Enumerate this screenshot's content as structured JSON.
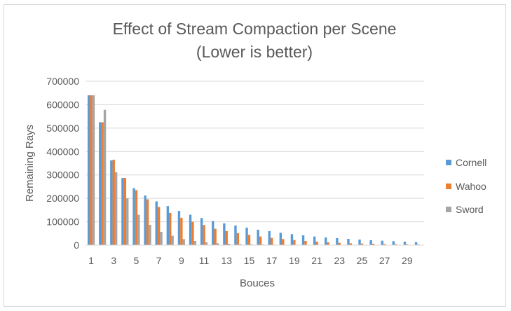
{
  "chart_data": {
    "type": "bar",
    "title": "Effect of Stream Compaction per Scene",
    "subtitle": "(Lower is better)",
    "xlabel": "Bouces",
    "ylabel": "Remaining Rays",
    "ylim": [
      0,
      700000
    ],
    "y_ticks": [
      "0",
      "100000",
      "200000",
      "300000",
      "400000",
      "500000",
      "600000",
      "700000"
    ],
    "y_tick_values": [
      0,
      100000,
      200000,
      300000,
      400000,
      500000,
      600000,
      700000
    ],
    "grid": true,
    "legend_position": "right",
    "categories": [
      "1",
      "2",
      "3",
      "4",
      "5",
      "6",
      "7",
      "8",
      "9",
      "10",
      "11",
      "12",
      "13",
      "14",
      "15",
      "16",
      "17",
      "18",
      "19",
      "20",
      "21",
      "22",
      "23",
      "24",
      "25",
      "26",
      "27",
      "28",
      "29",
      "30"
    ],
    "x_tick_labels": [
      "1",
      "",
      "3",
      "",
      "5",
      "",
      "7",
      "",
      "9",
      "",
      "11",
      "",
      "13",
      "",
      "15",
      "",
      "17",
      "",
      "19",
      "",
      "21",
      "",
      "23",
      "",
      "25",
      "",
      "27",
      "",
      "29",
      ""
    ],
    "series": [
      {
        "name": "Cornell",
        "color": "#5b9bd5",
        "values": [
          640000,
          525000,
          362000,
          287000,
          243000,
          212000,
          187000,
          167000,
          146000,
          130000,
          116000,
          103000,
          93000,
          84000,
          75000,
          66000,
          60000,
          53000,
          47000,
          42000,
          37000,
          33000,
          30000,
          27000,
          24000,
          21000,
          19000,
          17000,
          15000,
          13000
        ]
      },
      {
        "name": "Wahoo",
        "color": "#ed7d31",
        "values": [
          640000,
          525000,
          365000,
          287000,
          235000,
          196000,
          163000,
          138000,
          117000,
          100000,
          86000,
          70000,
          60000,
          52000,
          44000,
          37000,
          31000,
          26000,
          22000,
          18000,
          15000,
          12000,
          10000,
          8000,
          7000,
          6000,
          5000,
          4000,
          3500,
          3000
        ]
      },
      {
        "name": "Sword",
        "color": "#a5a5a5",
        "values": [
          640000,
          578000,
          312000,
          200000,
          130000,
          87000,
          57000,
          40000,
          26000,
          18000,
          12000,
          8000,
          6000,
          4500,
          3500,
          3000,
          2500,
          2000,
          1800,
          1500,
          1300,
          1200,
          1000,
          900,
          800,
          700,
          600,
          500,
          450,
          400
        ]
      }
    ]
  }
}
